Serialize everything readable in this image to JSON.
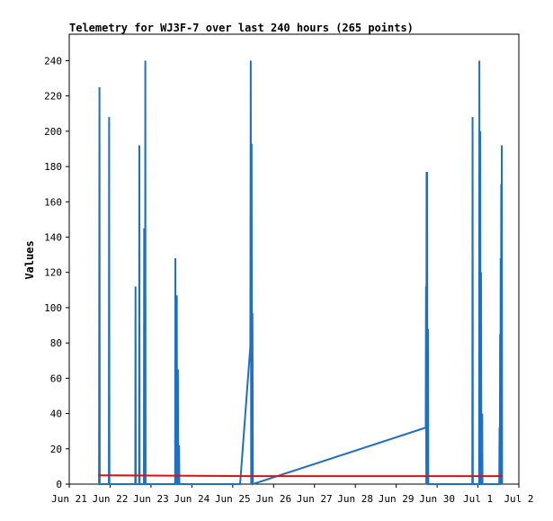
{
  "chart_data": {
    "type": "line",
    "title": "Telemetry for WJ3F-7 over last 240 hours (265 points)",
    "xlabel": "",
    "ylabel": "Values",
    "ylim": [
      0,
      255
    ],
    "yticks": [
      0,
      20,
      40,
      60,
      80,
      100,
      120,
      140,
      160,
      180,
      200,
      220,
      240
    ],
    "xlim": [
      "Jun 21",
      "Jul 2"
    ],
    "xtick_labels": [
      "Jun 21",
      "Jun 22",
      "Jun 23",
      "Jun 24",
      "Jun 25",
      "Jun 26",
      "Jun 27",
      "Jun 28",
      "Jun 29",
      "Jun 30",
      "Jul 1",
      "Jul 2"
    ],
    "grid": false,
    "legend": "none",
    "colors": {
      "series": "#1f6fc4",
      "reference": "#e01010",
      "axis": "#000000",
      "background": "#ffffff"
    },
    "series": [
      {
        "values": [
          [
            "Jun 21 17:30",
            0
          ],
          [
            "Jun 21 17:45",
            225
          ],
          [
            "Jun 21 17:55",
            0
          ],
          [
            "Jun 21 23:15",
            0
          ],
          [
            "Jun 21 23:25",
            208
          ],
          [
            "Jun 21 23:35",
            0
          ],
          [
            "Jun 22 14:45",
            0
          ],
          [
            "Jun 22 14:55",
            112
          ],
          [
            "Jun 22 15:05",
            0
          ],
          [
            "Jun 22 17:00",
            0
          ],
          [
            "Jun 22 17:10",
            192
          ],
          [
            "Jun 22 17:20",
            0
          ],
          [
            "Jun 22 19:50",
            0
          ],
          [
            "Jun 22 20:00",
            145
          ],
          [
            "Jun 22 20:10",
            0
          ],
          [
            "Jun 22 20:30",
            0
          ],
          [
            "Jun 22 20:40",
            240
          ],
          [
            "Jun 22 20:50",
            0
          ],
          [
            "Jun 23 14:10",
            0
          ],
          [
            "Jun 23 14:20",
            128
          ],
          [
            "Jun 23 14:30",
            0
          ],
          [
            "Jun 23 15:00",
            0
          ],
          [
            "Jun 23 15:10",
            107
          ],
          [
            "Jun 23 15:20",
            0
          ],
          [
            "Jun 23 15:40",
            0
          ],
          [
            "Jun 23 15:50",
            65
          ],
          [
            "Jun 23 16:00",
            0
          ],
          [
            "Jun 23 16:20",
            0
          ],
          [
            "Jun 23 16:30",
            22
          ],
          [
            "Jun 23 16:40",
            0
          ],
          [
            "Jun 25 04:20",
            0
          ],
          [
            "Jun 25 10:20",
            78
          ],
          [
            "Jun 25 10:35",
            240
          ],
          [
            "Jun 25 10:50",
            0
          ],
          [
            "Jun 25 11:05",
            193
          ],
          [
            "Jun 25 11:20",
            0
          ],
          [
            "Jun 25 11:35",
            97
          ],
          [
            "Jun 25 11:50",
            0
          ],
          [
            "Jun 29 17:20",
            32
          ],
          [
            "Jun 29 17:30",
            112
          ],
          [
            "Jun 29 17:40",
            0
          ],
          [
            "Jun 29 17:50",
            177
          ],
          [
            "Jun 29 18:00",
            0
          ],
          [
            "Jun 29 18:10",
            177
          ],
          [
            "Jun 29 18:20",
            0
          ],
          [
            "Jun 29 18:40",
            88
          ],
          [
            "Jun 29 18:50",
            0
          ],
          [
            "Jun 30 20:40",
            0
          ],
          [
            "Jun 30 20:50",
            208
          ],
          [
            "Jun 30 21:00",
            0
          ],
          [
            "Jul 1 00:40",
            0
          ],
          [
            "Jul 1 00:50",
            240
          ],
          [
            "Jul 1 01:00",
            0
          ],
          [
            "Jul 1 01:10",
            0
          ],
          [
            "Jul 1 01:20",
            200
          ],
          [
            "Jul 1 01:30",
            0
          ],
          [
            "Jul 1 01:40",
            0
          ],
          [
            "Jul 1 01:50",
            120
          ],
          [
            "Jul 1 02:00",
            0
          ],
          [
            "Jul 1 02:20",
            0
          ],
          [
            "Jul 1 02:30",
            40
          ],
          [
            "Jul 1 02:40",
            0
          ],
          [
            "Jul 1 12:30",
            0
          ],
          [
            "Jul 1 12:40",
            32
          ],
          [
            "Jul 1 12:50",
            0
          ],
          [
            "Jul 1 13:00",
            85
          ],
          [
            "Jul 1 13:10",
            0
          ],
          [
            "Jul 1 13:20",
            128
          ],
          [
            "Jul 1 13:30",
            0
          ],
          [
            "Jul 1 13:40",
            170
          ],
          [
            "Jul 1 13:50",
            0
          ],
          [
            "Jul 1 14:00",
            192
          ],
          [
            "Jul 1 14:10",
            0
          ]
        ]
      },
      {
        "values": [
          [
            "Jun 21 17:00",
            5
          ],
          [
            "Jun 25 12:00",
            4.5
          ],
          [
            "Jul 1 14:30",
            4.5
          ]
        ]
      }
    ]
  }
}
